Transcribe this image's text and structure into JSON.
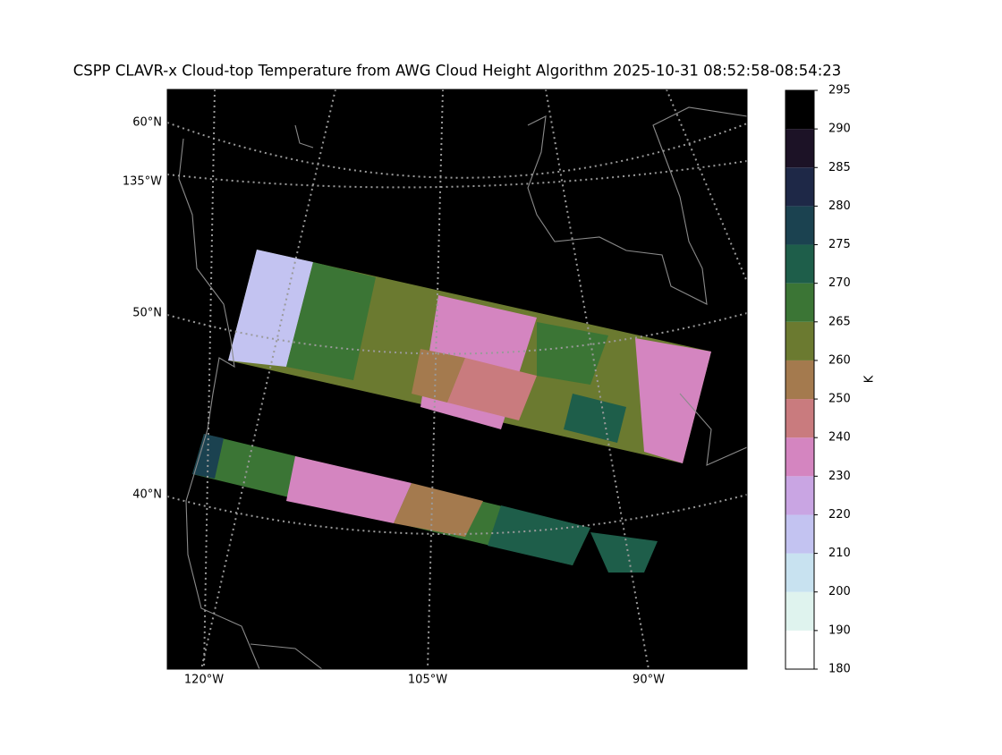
{
  "title": "CSPP CLAVR-x Cloud-top Temperature from AWG Cloud Height Algorithm 2025-10-31 08:52:58-08:54:23",
  "y_axis_labels": [
    "60°N",
    "135°W",
    "50°N",
    "40°N"
  ],
  "x_axis_labels": [
    "120°W",
    "105°W",
    "90°W"
  ],
  "colorbar": {
    "label": "K",
    "levels": [
      180,
      190,
      200,
      210,
      220,
      230,
      240,
      250,
      260,
      265,
      270,
      275,
      280,
      285,
      290,
      295
    ],
    "colors": [
      "#ffffff",
      "#dff3ee",
      "#c8e2f0",
      "#c3c3f1",
      "#c9a5e3",
      "#d485c0",
      "#c97b7e",
      "#a47a4e",
      "#6b7a30",
      "#3b7535",
      "#1e5e4a",
      "#1b4250",
      "#1e2847",
      "#1c1226",
      "#000000"
    ]
  }
}
